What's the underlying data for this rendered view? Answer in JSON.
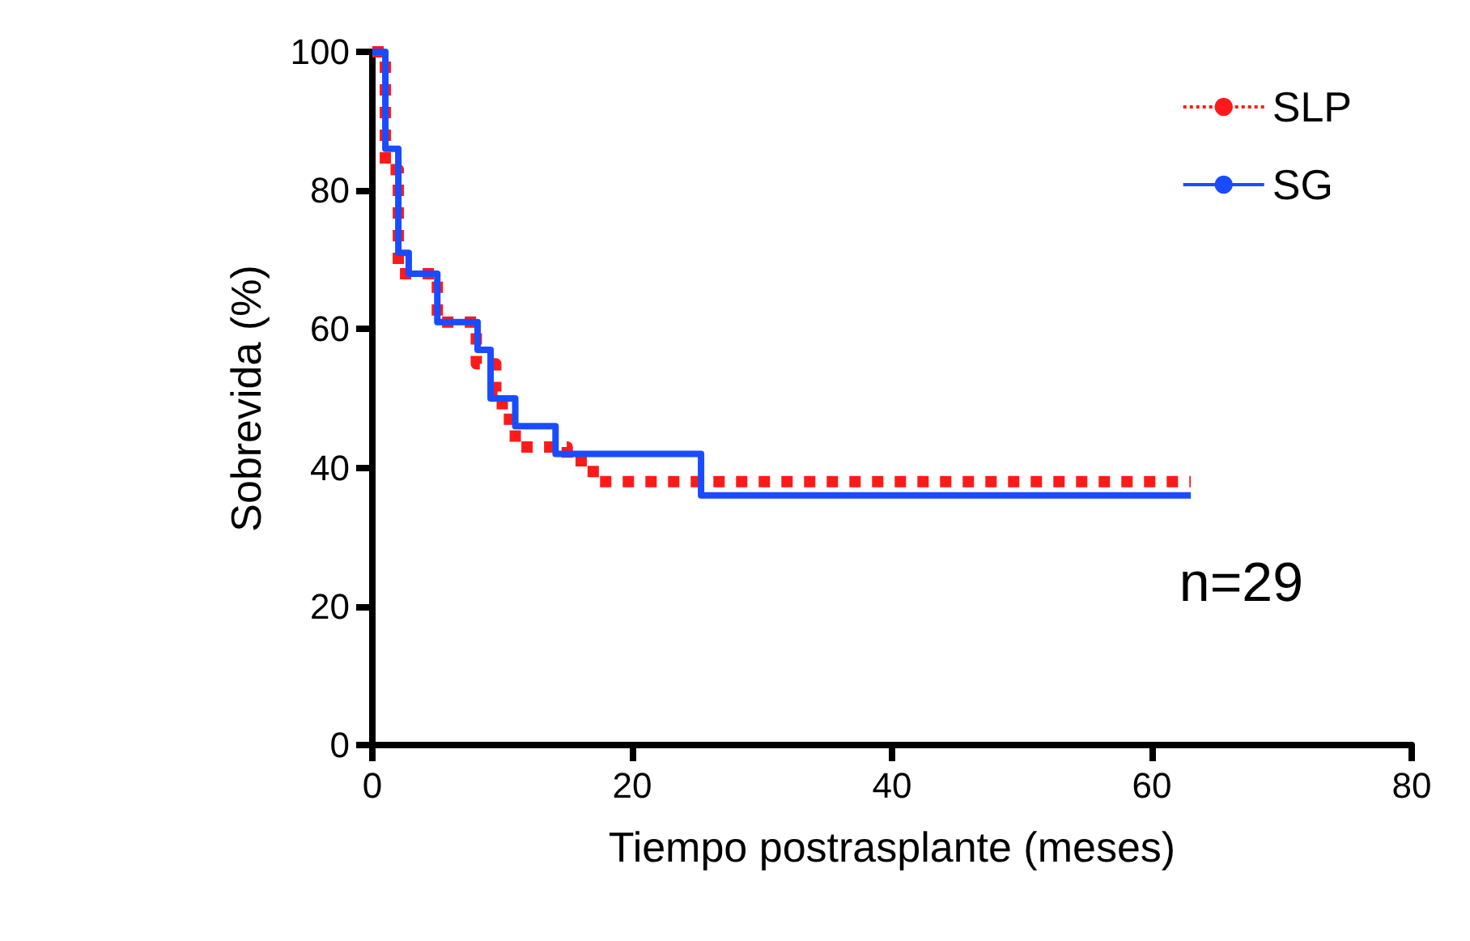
{
  "chart_data": {
    "type": "step",
    "xlabel": "Tiempo postrasplante (meses)",
    "ylabel": "Sobrevida (%)",
    "xlim": [
      0,
      80
    ],
    "xticks": [
      0,
      20,
      40,
      60,
      80
    ],
    "ylim": [
      0,
      100
    ],
    "yticks": [
      0,
      20,
      40,
      60,
      80,
      100
    ],
    "grid": false,
    "legend": "top right",
    "marker": "none",
    "annotations": [
      "n=29"
    ],
    "series": [
      {
        "name": "SLP",
        "color": "#ff1a1a",
        "line_style": "dotted",
        "x": [
          0,
          1,
          2,
          5,
          8,
          9.5,
          10,
          11,
          15,
          17,
          63
        ],
        "values": [
          100,
          83,
          68,
          61,
          55,
          51,
          47,
          43,
          41,
          38,
          38
        ]
      },
      {
        "name": "SG",
        "color": "#1a4cff",
        "line_style": "solid",
        "x": [
          0,
          1,
          2,
          2.8,
          5,
          8.1,
          9.1,
          11,
          14.1,
          25.3,
          63
        ],
        "values": [
          100,
          86,
          71,
          68,
          61,
          57,
          50,
          46,
          42,
          36,
          36
        ]
      }
    ]
  }
}
